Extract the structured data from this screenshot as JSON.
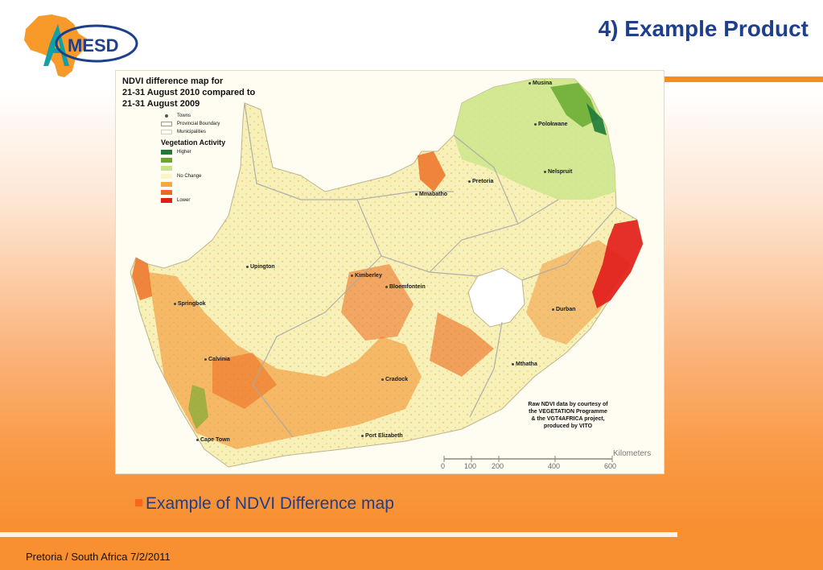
{
  "slide": {
    "title": "4) Example Product",
    "logo_text": "MESD",
    "caption": "Example of NDVI Difference map",
    "footer": "Pretoria / South Africa 7/2/2011"
  },
  "map": {
    "title_lines": [
      "NDVI difference map for",
      "21-31 August 2010 compared to",
      "21-31 August 2009"
    ],
    "legend": {
      "towns_label": "Towns",
      "provincial_label": "Provincial Boundary",
      "municipalities_label": "Municipalities",
      "activity_title": "Vegetation Activity",
      "classes": [
        {
          "label": "Higher",
          "color": "#1f7a3a"
        },
        {
          "label": "",
          "color": "#6aa82b"
        },
        {
          "label": "",
          "color": "#c6e58a"
        },
        {
          "label": "No Change",
          "color": "#fbf6c8"
        },
        {
          "label": "",
          "color": "#f7a93b"
        },
        {
          "label": "",
          "color": "#ec6a1e"
        },
        {
          "label": "Lower",
          "color": "#e21b1b"
        }
      ]
    },
    "towns": [
      "Musina",
      "Polokwane",
      "Pretoria",
      "Nelspruit",
      "Mmabatho",
      "Upington",
      "Kimberley",
      "Bloemfontein",
      "Springbok",
      "Durban",
      "Calvinia",
      "Mthatha",
      "Cradock",
      "Port Elizabeth",
      "Cape Town"
    ],
    "credit_lines": [
      "Raw NDVI data by courtesy of",
      "the VEGETATION Programme",
      "& the VGT4AFRICA project,",
      "produced by VITO"
    ],
    "scale": {
      "unit": "Kilometers",
      "ticks": [
        "0",
        "100",
        "200",
        "400",
        "600"
      ]
    }
  }
}
